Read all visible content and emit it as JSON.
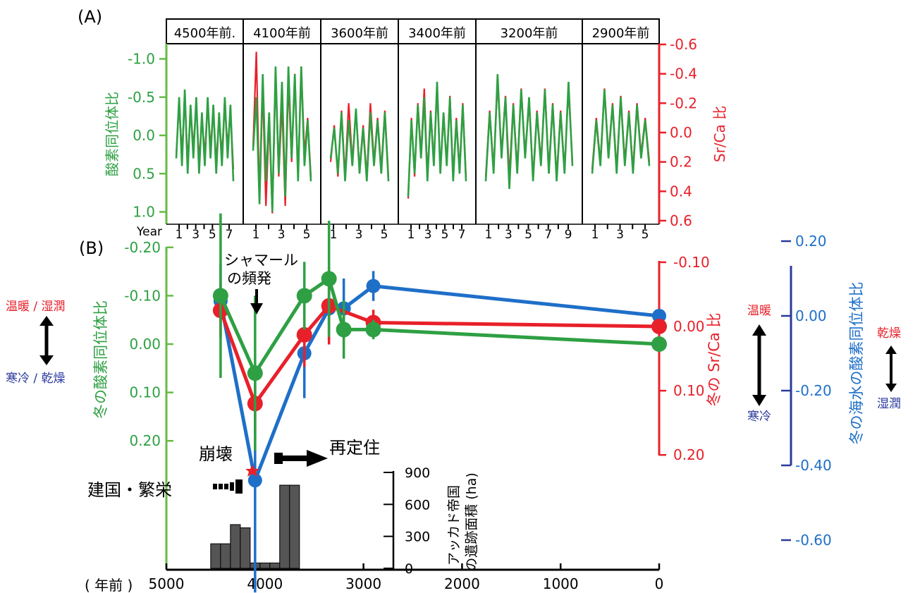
{
  "panel_a": {
    "label": "(A)",
    "periods": [
      "4500年前.",
      "4100年前",
      "3600年前",
      "3400年前",
      "3200年前",
      "2900年前"
    ],
    "left_axis_label": "酸素同位体比",
    "left_ticks": [
      "-1.0",
      "-0.5",
      "0.0",
      "0.5",
      "1.0"
    ],
    "right_axis_label": "Sr/Ca 比",
    "right_ticks": [
      "-0.6",
      "-0.4",
      "-0.2",
      "0.0",
      "0.2",
      "0.4",
      "0.6"
    ],
    "year_label": "Year",
    "year_ticks": [
      [
        "1",
        "3",
        "5",
        "7"
      ],
      [
        "1",
        "3",
        "5"
      ],
      [
        "1",
        "3",
        "5"
      ],
      [
        "1",
        "3",
        "5",
        "7"
      ],
      [
        "1",
        "3",
        "5",
        "7",
        "9"
      ],
      [
        "1",
        "3",
        "5"
      ]
    ]
  },
  "panel_b": {
    "label": "(B)",
    "left_axis_label": "冬の酸素同位体比",
    "left_ticks": [
      "-0.20",
      "-0.10",
      "0.00",
      "0.10",
      "0.20"
    ],
    "right1_axis_label": "冬の Sr/Ca 比",
    "right1_ticks": [
      "-0.10",
      "0.00",
      "0.10",
      "0.20"
    ],
    "right2_axis_label": "冬の海水の酸素同位体比",
    "right2_ticks": [
      "0.20",
      "0.00",
      "-0.20",
      "-0.40",
      "-0.60"
    ],
    "x_unit": "( 年前 )",
    "x_ticks": [
      "5000",
      "4000",
      "3000",
      "2000",
      "1000",
      "0"
    ],
    "legend_left": {
      "warm": "温暖 / 湿潤",
      "cold": "寒冷 / 乾燥"
    },
    "legend_right1": {
      "warm": "温暖",
      "cold": "寒冷"
    },
    "legend_right2": {
      "dry": "乾燥",
      "wet": "湿潤"
    },
    "annotation_shamal": [
      "シャマール",
      "の頻発"
    ],
    "annotation_collapse": "崩壊",
    "annotation_resettle": "再定住",
    "annotation_found": "建国・繁栄",
    "area_axis_label": [
      "アッカド帝国",
      "の遺跡面積 (ha)"
    ],
    "area_ticks": [
      "900",
      "600",
      "300",
      "0"
    ]
  },
  "colors": {
    "oxygen": "#2ea043",
    "srca": "#e8202a",
    "seawater": "#1e6fc8",
    "blue_label": "#2b3a9c",
    "bars": "#555555",
    "green_axis": "#66bb44"
  },
  "chart_data": [
    {
      "type": "line",
      "title": "",
      "xlabel": "Year",
      "ylabel": "酸素同位体比",
      "ylabel_right": "Sr/Ca 比",
      "ylim": [
        1.2,
        -1.2
      ],
      "ylim_right": [
        0.6,
        -0.6
      ],
      "grid": false,
      "panels": [
        {
          "name": "4500年前.",
          "years": 7,
          "oxygen": [
            0.3,
            -0.5,
            0.4,
            -0.6,
            0.5,
            -0.4,
            0.3,
            -0.5,
            0.5,
            -0.3,
            0.4,
            -0.5,
            0.3,
            -0.4,
            0.5,
            -0.3,
            0.4,
            -0.5,
            0.3,
            -0.4,
            0.6
          ],
          "srca": [
            0.15,
            -0.2,
            0.15,
            -0.25,
            0.2,
            -0.15,
            0.1,
            -0.2,
            0.2,
            -0.1,
            0.15,
            -0.2,
            0.1,
            -0.15,
            0.2,
            -0.1,
            0.15,
            -0.2,
            0.1,
            -0.15,
            0.25
          ]
        },
        {
          "name": "4100年前",
          "years": 5,
          "oxygen": [
            0.2,
            -0.5,
            0.9,
            -0.8,
            0.6,
            -0.3,
            1.0,
            -0.9,
            0.5,
            -0.7,
            0.8,
            -0.9,
            0.3,
            -0.8,
            0.6,
            -0.9,
            0.4,
            -0.2,
            0.6
          ],
          "srca": [
            0.1,
            -0.55,
            0.45,
            -0.3,
            0.5,
            -0.1,
            0.55,
            -0.4,
            0.3,
            -0.2,
            0.5,
            -0.35,
            0.2,
            -0.4,
            0.3,
            -0.45,
            0.15,
            -0.1,
            0.3
          ]
        },
        {
          "name": "3600年前",
          "years": 5,
          "oxygen": [
            0.3,
            -0.1,
            0.5,
            -0.3,
            0.6,
            -0.2,
            0.4,
            -0.35,
            0.5,
            -0.1,
            0.6,
            -0.3,
            0.4,
            -0.2,
            0.5,
            -0.3,
            0.6
          ],
          "srca": [
            0.2,
            -0.05,
            0.3,
            -0.15,
            0.3,
            -0.2,
            0.2,
            -0.15,
            0.25,
            -0.05,
            0.3,
            -0.2,
            0.2,
            -0.1,
            0.25,
            -0.15,
            0.3
          ]
        },
        {
          "name": "3400年前",
          "years": 7,
          "oxygen": [
            0.8,
            -0.2,
            0.5,
            -0.4,
            0.3,
            -0.5,
            0.6,
            -0.3,
            0.4,
            -0.7,
            0.5,
            -0.3,
            0.4,
            -0.5,
            0.6,
            -0.2,
            0.5,
            -0.4,
            0.6
          ],
          "srca": [
            0.45,
            -0.1,
            0.3,
            -0.2,
            0.15,
            -0.3,
            0.3,
            -0.15,
            0.2,
            -0.3,
            0.25,
            -0.1,
            0.2,
            -0.25,
            0.3,
            -0.1,
            0.25,
            -0.2,
            0.3
          ]
        },
        {
          "name": "3200年前",
          "years": 9,
          "oxygen": [
            0.6,
            -0.3,
            0.5,
            -0.8,
            0.3,
            -0.5,
            0.7,
            -0.4,
            0.5,
            -0.6,
            0.3,
            -0.5,
            0.6,
            -0.3,
            0.4,
            -0.6,
            0.5,
            -0.4,
            0.6,
            -0.3,
            0.5,
            -0.7,
            0.4
          ],
          "srca": [
            0.3,
            -0.15,
            0.25,
            -0.35,
            0.15,
            -0.25,
            0.3,
            -0.2,
            0.25,
            -0.3,
            0.15,
            -0.2,
            0.3,
            -0.15,
            0.2,
            -0.3,
            0.25,
            -0.2,
            0.3,
            -0.15,
            0.25,
            -0.3,
            0.2
          ]
        },
        {
          "name": "2900年前",
          "years": 5,
          "oxygen": [
            0.5,
            -0.2,
            0.4,
            -0.6,
            0.3,
            -0.4,
            0.5,
            -0.5,
            0.4,
            -0.3,
            0.5,
            -0.4,
            0.3,
            -0.2,
            0.4
          ],
          "srca": [
            0.25,
            -0.1,
            0.2,
            -0.3,
            0.15,
            -0.2,
            0.25,
            -0.25,
            0.2,
            -0.15,
            0.25,
            -0.2,
            0.15,
            -0.1,
            0.2
          ]
        }
      ]
    },
    {
      "type": "line",
      "title": "",
      "xlabel": "( 年前 )",
      "ylabel": "冬の酸素同位体比",
      "xlim": [
        5000,
        0
      ],
      "ylim": [
        0.22,
        -0.2
      ],
      "ylabel_right": "冬の Sr/Ca 比",
      "ylim_right": [
        0.22,
        -0.13
      ],
      "ylabel_right2": "冬の海水の酸素同位体比",
      "ylim_right2": [
        -0.6,
        0.2
      ],
      "grid": false,
      "series": [
        {
          "name": "冬の酸素同位体比",
          "axis": "left",
          "x": [
            4450,
            4100,
            3600,
            3350,
            3200,
            2900,
            0
          ],
          "y": [
            -0.1,
            0.06,
            -0.1,
            -0.135,
            -0.03,
            -0.03,
            0.0
          ],
          "err": [
            0.17,
            0.16,
            0.07,
            0.12,
            0.06,
            0.02,
            0.0
          ]
        },
        {
          "name": "冬の Sr/Ca 比",
          "axis": "right",
          "x": [
            4450,
            4100,
            3600,
            3350,
            2900,
            0
          ],
          "y": [
            -0.025,
            0.12,
            0.013,
            -0.032,
            -0.006,
            0.0
          ],
          "err": [
            0.04,
            0.055,
            0.05,
            0.06,
            0.02,
            0.0
          ]
        },
        {
          "name": "冬の海水の酸素同位体比",
          "axis": "right2",
          "x": [
            4450,
            4100,
            3600,
            3350,
            3200,
            2900,
            0
          ],
          "y": [
            0.04,
            -0.44,
            -0.1,
            0.02,
            0.02,
            0.08,
            0.0
          ],
          "err": [
            0.1,
            0.3,
            0.12,
            0.08,
            0.08,
            0.04,
            0.0
          ]
        }
      ]
    },
    {
      "type": "bar",
      "title": "",
      "xlabel": "( 年前 )",
      "ylabel": "アッカド帝国の遺跡面積 (ha)",
      "ylim": [
        0,
        900
      ],
      "bars": [
        {
          "start": 4550,
          "end": 4450,
          "value": 230
        },
        {
          "start": 4450,
          "end": 4350,
          "value": 230
        },
        {
          "start": 4350,
          "end": 4250,
          "value": 410
        },
        {
          "start": 4250,
          "end": 4150,
          "value": 380
        },
        {
          "start": 4150,
          "end": 4050,
          "value": 50
        },
        {
          "start": 4050,
          "end": 3950,
          "value": 50
        },
        {
          "start": 3950,
          "end": 3850,
          "value": 50
        },
        {
          "start": 3850,
          "end": 3750,
          "value": 780
        },
        {
          "start": 3750,
          "end": 3650,
          "value": 780
        }
      ]
    }
  ]
}
